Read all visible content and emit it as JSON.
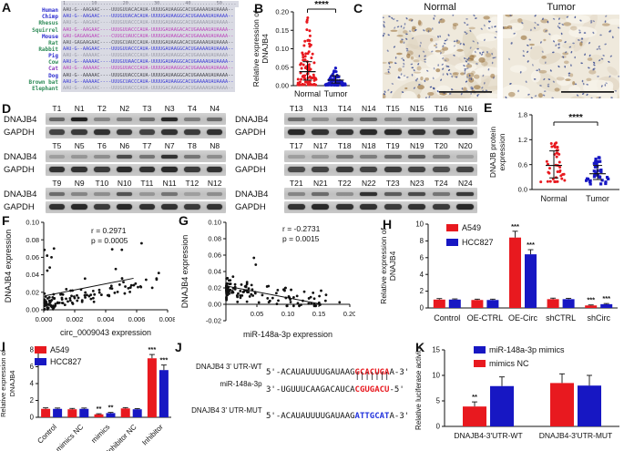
{
  "colors": {
    "red": "#e8191f",
    "blue": "#1717c3",
    "black": "#111111",
    "blot_bg": "#c7c7c7",
    "ihc_bg": "#efe9dc",
    "ihc_nuclei": "#3d4f92",
    "ihc_brown": "#93682f"
  },
  "panelA": {
    "label": "A",
    "ruler": "1.........10.........20.........30.........40.........50.....",
    "rows": [
      {
        "species": "Human",
        "name_color": "#2d2dd0",
        "seq": "AAU-G--AAGAAC----UUUGUUACACAUA-UUUUGAUAAGGCACUGAAAAUAUAAAA--",
        "seq_color": "#55555f"
      },
      {
        "species": "Chimp",
        "name_color": "#2d2dd0",
        "seq": "AAU-G--AAGAAC----UUUGUUACACAUA-UUUUGAUAAGGCACUGAAAAUAUAAAA--",
        "seq_color": "#3a3ad6"
      },
      {
        "species": "Rhesus",
        "name_color": "#2e8b57",
        "seq": "AAU-G--AAGAAC----UUUGUUACCCAUA-UUUUGAUAAGGCACUGAAAAUAUAAAA--",
        "seq_color": "#9a9aa8"
      },
      {
        "species": "Squirrel",
        "name_color": "#2e8b57",
        "seq": "AAU-G--AAGAAC----UUUGUUACCCAUA-UUUUGAUAAGACACUGAAAAUAUAAAA--",
        "seq_color": "#bb44bb"
      },
      {
        "species": "Mouse",
        "name_color": "#2d2dd0",
        "seq": "GAU-GAGAAGAAC----CUUGCUAUCCAUA-UUUUGAUAAGACACUGAAAAUAUAAAA--",
        "seq_color": "#bb44bb"
      },
      {
        "species": "Rat",
        "name_color": "#2e8b57",
        "seq": "AAU-GAGAAGAAC----CUUGCUAUCCAUA-UUUUGAUAAGACACUGAAAAUAUAAAA--",
        "seq_color": "#55555f"
      },
      {
        "species": "Rabbit",
        "name_color": "#2e8b57",
        "seq": "AAU-G--AAGAAC----UUUGUUACCCAUA-UUUUGAUAAGGCACUGAAAAUAUAAAA--",
        "seq_color": "#3a3ad6"
      },
      {
        "species": "Pig",
        "name_color": "#2d2dd0",
        "seq": "AAU-G--AAAAAC----UUUGUUACCCAUA-UUUUGAUAAGGCACUGAAAAUAUAAAA--",
        "seq_color": "#9a9aa8"
      },
      {
        "species": "Cow",
        "name_color": "#2e8b57",
        "seq": "AAU-G--AAAAAC----UUUGUUAACCAUA-UUUUGAUAAGGCACUGAAAAUAUAAAA--",
        "seq_color": "#3a3ad6"
      },
      {
        "species": "Cat",
        "name_color": "#8833bb",
        "seq": "AAU-G--AAAAAC----UUUGUUACCCAUA-UUUUGAUAAGGCACUGAAAAUAUAAAA--",
        "seq_color": "#bb44bb"
      },
      {
        "species": "Dog",
        "name_color": "#2d2dd0",
        "seq": "AAU-G--AAAAAC----UUUGUUACCCAUA-UUUUGAUAAGGCACUGAAAAUAUAAAA--",
        "seq_color": "#44444c"
      },
      {
        "species": "Brown bat",
        "name_color": "#2e8b57",
        "seq": "AAU-G--AAAAAC----UUUGCUACCCAUA-UUUUGAUAAGGCACUGAAAAUAUAAAA--",
        "seq_color": "#3a3ad6"
      },
      {
        "species": "Elephant",
        "name_color": "#2e8b57",
        "seq": "AAU-G--AAGAAC----UUUGUUACCCAUA-UUUUGACAAGGCACUGAAAAUAUAAAA--",
        "seq_color": "#9a9aa8"
      }
    ]
  },
  "panelB": {
    "label": "B"
  },
  "panelC": {
    "label": "C",
    "images": [
      {
        "title": "Normal",
        "seed": 7,
        "nuclei": 185,
        "brown": 62
      },
      {
        "title": "Tumor",
        "seed": 13,
        "nuclei": 130,
        "brown": 30
      }
    ]
  },
  "panelD": {
    "label": "D",
    "row_labels": [
      "DNAJB4",
      "GAPDH"
    ],
    "left_blocks": [
      {
        "lanes": [
          "T1",
          "N1",
          "T2",
          "N2",
          "T3",
          "N3",
          "T4",
          "N4"
        ],
        "dnajb4": [
          0.55,
          0.95,
          0.35,
          0.4,
          0.5,
          0.9,
          0.4,
          0.5
        ],
        "gapdh": [
          0.75,
          0.8,
          0.85,
          0.8,
          0.75,
          0.85,
          0.8,
          0.85
        ]
      },
      {
        "lanes": [
          "T5",
          "N5",
          "T6",
          "N6",
          "T7",
          "N7",
          "T8",
          "N8"
        ],
        "dnajb4": [
          0.2,
          0.25,
          0.3,
          0.7,
          0.45,
          0.85,
          0.45,
          0.3
        ],
        "gapdh": [
          0.85,
          0.85,
          0.8,
          0.9,
          0.85,
          0.9,
          0.8,
          0.85
        ]
      },
      {
        "lanes": [
          "T9",
          "N9",
          "T10",
          "N10",
          "T11",
          "N11",
          "T12",
          "N12"
        ],
        "dnajb4": [
          0.5,
          0.35,
          0.3,
          0.65,
          0.25,
          0.45,
          0.2,
          0.3
        ],
        "gapdh": [
          0.85,
          0.9,
          0.8,
          0.9,
          0.85,
          0.85,
          0.8,
          0.85
        ]
      }
    ],
    "right_blocks": [
      {
        "lanes": [
          "T13",
          "N13",
          "T14",
          "N14",
          "T15",
          "N15",
          "T16",
          "N16"
        ],
        "dnajb4": [
          0.5,
          0.3,
          0.4,
          0.55,
          0.35,
          0.5,
          0.45,
          0.6
        ],
        "gapdh": [
          0.9,
          0.85,
          0.85,
          0.9,
          0.9,
          0.85,
          0.8,
          0.9
        ]
      },
      {
        "lanes": [
          "T17",
          "N17",
          "T18",
          "N18",
          "T19",
          "N19",
          "T20",
          "N20"
        ],
        "dnajb4": [
          0.2,
          0.25,
          0.45,
          0.4,
          0.55,
          0.6,
          0.4,
          0.2
        ],
        "gapdh": [
          0.7,
          0.75,
          0.8,
          0.75,
          0.8,
          0.75,
          0.7,
          0.75
        ]
      },
      {
        "lanes": [
          "T21",
          "N21",
          "T22",
          "N22",
          "T23",
          "N23",
          "T24",
          "N24"
        ],
        "dnajb4": [
          0.35,
          0.5,
          0.3,
          0.85,
          0.6,
          0.7,
          0.45,
          0.8
        ],
        "gapdh": [
          0.85,
          0.9,
          0.85,
          0.85,
          0.8,
          0.85,
          0.8,
          0.9
        ]
      }
    ]
  },
  "panelE": {
    "label": "E"
  },
  "panelF": {
    "label": "F"
  },
  "panelG": {
    "label": "G"
  },
  "panelH": {
    "label": "H"
  },
  "panelI": {
    "label": "I"
  },
  "panelJ": {
    "label": "J",
    "pairing_bars": "|||||||",
    "rows": [
      {
        "label": "DNAJB4 3' UTR-WT",
        "prefix": "5'-ACAUAUUUUGAUAAG",
        "highlight": "GCACUGA",
        "highlight_color": "#e8191f",
        "suffix": "A-3'"
      },
      {
        "label": "miR-148a-3p",
        "prefix": "3'-UGUUUCAAGACAUCA",
        "highlight": "CGUGACU",
        "highlight_color": "#e8191f",
        "suffix": "-5'"
      },
      {
        "label": "DNAJB4 3' UTR-MUT",
        "prefix": "5'-ACAUAUUUUGAUAAG",
        "highlight": "ATTGCAT",
        "highlight_color": "#2233dd",
        "suffix": "A-3'"
      }
    ]
  },
  "panelK": {
    "label": "K"
  },
  "chart_data": {
    "B": {
      "type": "scatter",
      "ylabel_lines": [
        "Relative expression of",
        "DNAJB4"
      ],
      "ylim": [
        0,
        0.2
      ],
      "yticks": [
        0,
        0.05,
        0.1,
        0.15,
        0.2
      ],
      "ytick_labels": [
        "0.00",
        "0.05",
        "0.10",
        "0.15",
        "0.20"
      ],
      "significance": "****",
      "groups": [
        {
          "name": "Normal",
          "color": "#e8191f",
          "marker": "circle",
          "n": 95,
          "range": [
            0.002,
            0.185
          ],
          "median": 0.038,
          "whisker_low": 0.015,
          "whisker_high": 0.065,
          "skew": 2.6,
          "seed": 11
        },
        {
          "name": "Tumor",
          "color": "#1717c3",
          "marker": "circle",
          "n": 95,
          "range": [
            0.001,
            0.048
          ],
          "median": 0.015,
          "whisker_low": 0.007,
          "whisker_high": 0.027,
          "skew": 2.2,
          "seed": 22
        }
      ]
    },
    "E": {
      "type": "scatter",
      "ylabel_lines": [
        "DNAJB protein",
        "expression"
      ],
      "ylim": [
        0,
        1.8
      ],
      "yticks": [
        0,
        0.6,
        1.2,
        1.8
      ],
      "ytick_labels": [
        "0.0",
        "0.6",
        "1.2",
        "1.8"
      ],
      "significance": "****",
      "groups": [
        {
          "name": "Normal",
          "color": "#e8191f",
          "marker": "circle",
          "n": 42,
          "range": [
            0.18,
            1.35
          ],
          "median": 0.58,
          "whisker_low": 0.28,
          "whisker_high": 0.93,
          "skew": 1.8,
          "seed": 33
        },
        {
          "name": "Tumor",
          "color": "#1717c3",
          "marker": "square",
          "n": 38,
          "range": [
            0.13,
            0.8
          ],
          "median": 0.38,
          "whisker_low": 0.24,
          "whisker_high": 0.58,
          "skew": 1.6,
          "seed": 44
        }
      ]
    },
    "F": {
      "type": "scatter",
      "xlabel": "circ_0009043 expression",
      "ylabel": "DNAJB4 expression",
      "xlim": [
        0,
        0.008
      ],
      "ylim": [
        0,
        0.1
      ],
      "xticks": [
        0,
        0.002,
        0.004,
        0.006,
        0.008
      ],
      "xtick_labels": [
        "0.000",
        "0.002",
        "0.004",
        "0.006",
        "0.008"
      ],
      "yticks": [
        0,
        0.02,
        0.04,
        0.06,
        0.08,
        0.1
      ],
      "ytick_labels": [
        "0.00",
        "0.02",
        "0.04",
        "0.06",
        "0.08",
        "0.10"
      ],
      "r_text": "r = 0.2971",
      "p_text": "p = 0.0005",
      "trend": {
        "x": [
          0.0001,
          0.0058
        ],
        "y": [
          0.016,
          0.036
        ]
      },
      "gen": {
        "seed": 5,
        "n": 135,
        "xpow": 2.7,
        "xmaxfrac": 0.95,
        "a": 0.007,
        "b": 3.6,
        "noise": 0.013,
        "tail_p": 0.07,
        "tail_mag": 0.055,
        "tail_xmax": 0.008,
        "spread_p": 0,
        "a2": 0,
        "xmin": 5e-05,
        "ymin": 0.0005,
        "ymax": 0.088
      }
    },
    "G": {
      "type": "scatter",
      "xlabel": "miR-148a-3p expression",
      "ylabel": "DNAJB4 expression",
      "xlim": [
        0,
        0.2
      ],
      "ylim": [
        -0.02,
        0.1
      ],
      "xticks": [
        0.05,
        0.1,
        0.15,
        0.2
      ],
      "xtick_labels": [
        "0.05",
        "0.10",
        "0.15",
        "0.20"
      ],
      "yticks": [
        -0.02,
        0,
        0.02,
        0.04,
        0.06,
        0.08,
        0.1
      ],
      "ytick_labels": [
        "-0.02",
        "0.00",
        "0.02",
        "0.04",
        "0.06",
        "0.08",
        "0.10"
      ],
      "r_text": "r = -0.2731",
      "p_text": "p = 0.0015",
      "trend": {
        "x": [
          0.003,
          0.155
        ],
        "y": [
          0.022,
          0.0
        ]
      },
      "gen": {
        "seed": 6,
        "n": 135,
        "xpow": 3.1,
        "xmaxfrac": 0.85,
        "a": 0.018,
        "b": -0.1,
        "noise": 0.015,
        "tail_p": 0.06,
        "tail_mag": 0.05,
        "tail_xmax": 0.05,
        "spread_p": 0.08,
        "a2": 0.002,
        "xmin": 0.0008,
        "ymin": -0.002,
        "ymax": 0.088
      }
    },
    "H": {
      "type": "bar",
      "ylabel_lines": [
        "Relative expression of",
        "DNAJB4"
      ],
      "ylim": [
        0,
        10
      ],
      "yticks": [
        0,
        2,
        4,
        6,
        8,
        10
      ],
      "ytick_labels": [
        "0",
        "2",
        "4",
        "6",
        "8",
        "10"
      ],
      "categories": [
        "Control",
        "OE-CTRL",
        "OE-Circ",
        "shCTRL",
        "shCirc"
      ],
      "legend": [
        {
          "label": "A549",
          "color": "#e8191f"
        },
        {
          "label": "HCC827",
          "color": "#1717c3"
        }
      ],
      "series": [
        {
          "name": "A549",
          "color": "#e8191f",
          "values": [
            1.0,
            0.95,
            8.4,
            1.05,
            0.3
          ],
          "errors": [
            0.12,
            0.1,
            0.75,
            0.12,
            0.06
          ],
          "sig": [
            "",
            "",
            "***",
            "",
            "***"
          ]
        },
        {
          "name": "HCC827",
          "color": "#1717c3",
          "values": [
            1.0,
            0.95,
            6.4,
            1.05,
            0.45
          ],
          "errors": [
            0.08,
            0.1,
            0.55,
            0.1,
            0.08
          ],
          "sig": [
            "",
            "",
            "***",
            "",
            "***"
          ]
        }
      ]
    },
    "I": {
      "type": "bar",
      "ylabel_lines": [
        "Relative expression of",
        "DNAJB4"
      ],
      "ylim": [
        0,
        8
      ],
      "yticks": [
        0,
        2,
        4,
        6,
        8
      ],
      "ytick_labels": [
        "0",
        "2",
        "4",
        "6",
        "8"
      ],
      "categories": [
        "Control",
        "mimics NC",
        "mimics",
        "Inhibitor NC",
        "Inhibitor"
      ],
      "rotate_labels": true,
      "legend": [
        {
          "label": "A549",
          "color": "#e8191f"
        },
        {
          "label": "HCC827",
          "color": "#1717c3"
        }
      ],
      "series": [
        {
          "name": "A549",
          "color": "#e8191f",
          "values": [
            1.0,
            0.95,
            0.35,
            1.05,
            7.0
          ],
          "errors": [
            0.12,
            0.1,
            0.07,
            0.1,
            0.45
          ],
          "sig": [
            "",
            "",
            "**",
            "",
            "***"
          ]
        },
        {
          "name": "HCC827",
          "color": "#1717c3",
          "values": [
            1.0,
            1.0,
            0.5,
            0.95,
            5.6
          ],
          "errors": [
            0.1,
            0.1,
            0.08,
            0.08,
            0.6
          ],
          "sig": [
            "",
            "",
            "**",
            "",
            "***"
          ]
        }
      ]
    },
    "K": {
      "type": "bar",
      "ylabel_lines": [
        "Relative luciferase activity"
      ],
      "ylim": [
        0,
        15
      ],
      "yticks": [
        0,
        5,
        10,
        15
      ],
      "ytick_labels": [
        "0",
        "5",
        "10",
        "15"
      ],
      "categories": [
        "DNAJB4-3'UTR-WT",
        "DNAJB4-3'UTR-MUT"
      ],
      "legend": [
        {
          "label": "miR-148a-3p mimics",
          "color": "#1717c3"
        },
        {
          "label": "mimics NC",
          "color": "#e8191f"
        }
      ],
      "series": [
        {
          "name": "mimics NC",
          "color": "#e8191f",
          "values": [
            3.9,
            8.5
          ],
          "errors": [
            0.9,
            1.8
          ],
          "sig": [
            "**",
            ""
          ]
        },
        {
          "name": "miR-148a-3p mimics",
          "color": "#1717c3",
          "values": [
            7.9,
            8.0
          ],
          "errors": [
            1.8,
            2.0
          ],
          "sig": [
            "",
            ""
          ]
        }
      ]
    }
  }
}
